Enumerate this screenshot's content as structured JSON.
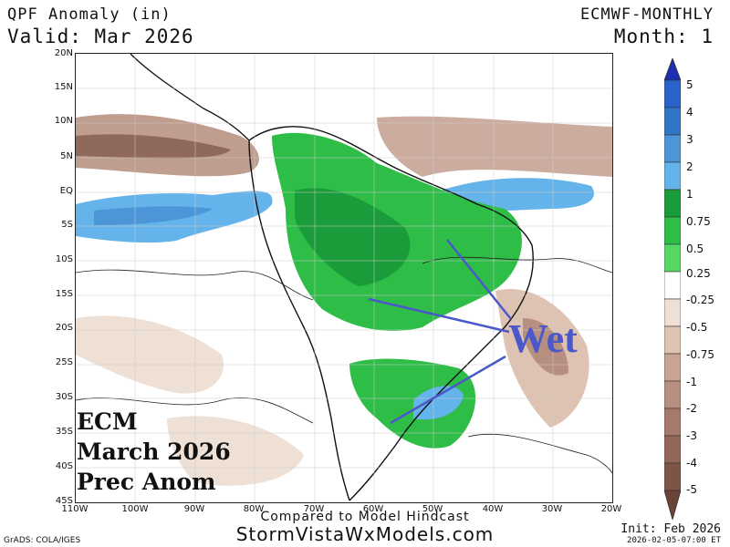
{
  "header": {
    "title": "QPF Anomaly (in)",
    "valid": "Valid: Mar 2026",
    "model": "ECMWF-MONTHLY",
    "month": "Month: 1"
  },
  "axes": {
    "lat_labels": [
      "20N",
      "15N",
      "10N",
      "5N",
      "EQ",
      "5S",
      "10S",
      "15S",
      "20S",
      "25S",
      "30S",
      "35S",
      "40S",
      "45S"
    ],
    "lon_labels": [
      "110W",
      "100W",
      "90W",
      "80W",
      "70W",
      "60W",
      "50W",
      "40W",
      "30W",
      "20W"
    ]
  },
  "annotations": {
    "ecm_line1": "ECM",
    "ecm_line2": "March 2026",
    "ecm_line3": "Prec Anom",
    "wet": "Wet"
  },
  "colorbar": {
    "labels": [
      "5",
      "4",
      "3",
      "2",
      "1",
      "0.75",
      "0.5",
      "0.25",
      "-0.25",
      "-0.5",
      "-0.75",
      "-1",
      "-2",
      "-3",
      "-4",
      "-5"
    ],
    "colors": {
      "5": "#1d2fb0",
      "4": "#2a63c9",
      "3": "#2f77c4",
      "2": "#4c95d6",
      "1": "#64b3ea",
      "0.75": "#1b9c3a",
      "0.5": "#2ebd46",
      "0.25": "#56d865",
      "near_zero": "#ffffff",
      "-0.25": "#efe0d5",
      "-0.5": "#dfc3b2",
      "-0.75": "#caa493",
      "-1": "#b78f80",
      "-2": "#a57a6c",
      "-3": "#926759",
      "-4": "#7e5447",
      "-5": "#6a4336"
    }
  },
  "footer": {
    "compare": "Compared to Model Hindcast",
    "site": "StormVistaWxModels.com",
    "credit": "GrADS: COLA/IGES",
    "init": "Init: Feb 2026",
    "stamp": "2026-02-05-07:00 ET"
  }
}
